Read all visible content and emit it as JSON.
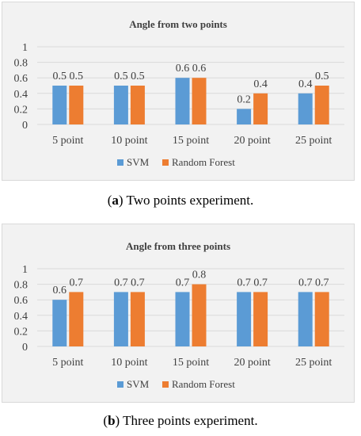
{
  "chart_data": [
    {
      "type": "bar",
      "title": "Angle from two points",
      "categories": [
        "5 point",
        "10 point",
        "15 point",
        "20 point",
        "25 point"
      ],
      "series": [
        {
          "name": "SVM",
          "values": [
            0.5,
            0.5,
            0.6,
            0.2,
            0.4
          ],
          "labels": [
            "0.5",
            "0.5",
            "0.6",
            "0.2",
            "0.4"
          ],
          "color": "#5b9bd5"
        },
        {
          "name": "Random Forest",
          "values": [
            0.5,
            0.5,
            0.6,
            0.4,
            0.5
          ],
          "labels": [
            "0.5",
            "0.5",
            "0.6",
            "0.4",
            "0.5"
          ],
          "color": "#ed7d31"
        }
      ],
      "ylim": [
        0,
        1
      ],
      "yticks": [
        "0",
        "0.2",
        "0.4",
        "0.6",
        "0.8",
        "1"
      ],
      "grid": true,
      "legend": "bottom"
    },
    {
      "type": "bar",
      "title": "Angle from three points",
      "categories": [
        "5 point",
        "10 point",
        "15 point",
        "20 point",
        "25 point"
      ],
      "series": [
        {
          "name": "SVM",
          "values": [
            0.6,
            0.7,
            0.7,
            0.7,
            0.7
          ],
          "labels": [
            "0.6",
            "0.7",
            "0.7",
            "0.7",
            "0.7"
          ],
          "color": "#5b9bd5"
        },
        {
          "name": "Random Forest",
          "values": [
            0.7,
            0.7,
            0.8,
            0.7,
            0.7
          ],
          "labels": [
            "0.7",
            "0.7",
            "0.8",
            "0.7",
            "0.7"
          ],
          "color": "#ed7d31"
        }
      ],
      "ylim": [
        0,
        1
      ],
      "yticks": [
        "0",
        "0.2",
        "0.4",
        "0.6",
        "0.8",
        "1"
      ],
      "grid": true,
      "legend": "bottom"
    }
  ],
  "captions": [
    {
      "letter": "a",
      "open": "(",
      "close": ")",
      "text": " Two points experiment."
    },
    {
      "letter": "b",
      "open": "(",
      "close": ")",
      "text": " Three points experiment."
    }
  ]
}
